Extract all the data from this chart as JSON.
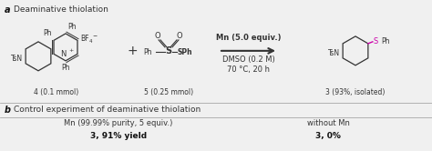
{
  "fig_width": 4.74,
  "fig_height": 1.66,
  "dpi": 100,
  "bg_color": "#f0f0f0",
  "panel_a_bg": "#f0f0f0",
  "panel_b_bg": "#e0e0e0",
  "section_a_label": "a",
  "section_a_title": "Deaminative thiolation",
  "section_b_label": "b",
  "section_b_title": "Control experiment of deaminative thiolation",
  "compound4_label": "4 (0.1 mmol)",
  "compound5_label": "5 (0.25 mmol)",
  "compound3_label": "3 (93%, isolated)",
  "reagents_line1": "Mn (5.0 equiv.)",
  "reagents_line2": "DMSO (0.2 M)",
  "reagents_line3": "70 °C, 20 h",
  "plus_sign": "+",
  "ctrl_left_line1": "Mn (99.99% purity, 5 equiv.)",
  "ctrl_left_line2": "3, 91% yield",
  "ctrl_right_line1": "without Mn",
  "ctrl_right_line2": "3, 0%",
  "divider_color": "#999999",
  "label_color": "#333333",
  "bold_color": "#111111",
  "line_color": "#333333",
  "spink_color": "#cc00aa"
}
